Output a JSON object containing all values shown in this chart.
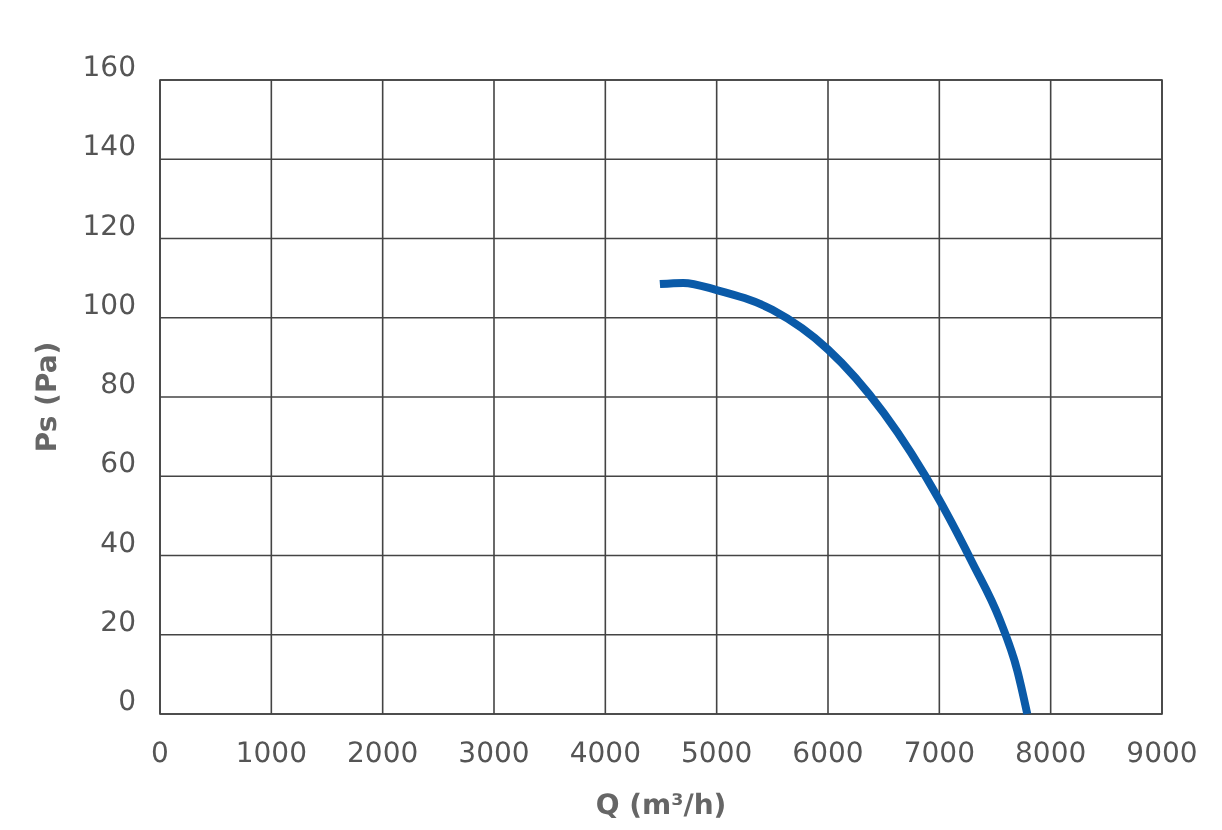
{
  "chart_data": {
    "type": "line",
    "xlabel": "Q (m³/h)",
    "ylabel": "Ps (Pa)",
    "x": [
      4490,
      4700,
      5000,
      5500,
      6000,
      6500,
      7000,
      7300,
      7540,
      7700,
      7790
    ],
    "series": [
      {
        "color": "#0a5aa8",
        "values": [
          108.5,
          108.8,
          107,
          102,
          92,
          76,
          54,
          38,
          24,
          11,
          0
        ]
      }
    ],
    "xlim": [
      0,
      9000
    ],
    "xticks": [
      0,
      1000,
      2000,
      3000,
      4000,
      5000,
      6000,
      7000,
      8000,
      9000
    ],
    "ylim": [
      0,
      160
    ],
    "yticks": [
      0,
      20,
      40,
      60,
      80,
      100,
      120,
      140,
      160
    ],
    "grid": true,
    "marker": "none",
    "line_style": "solid"
  }
}
